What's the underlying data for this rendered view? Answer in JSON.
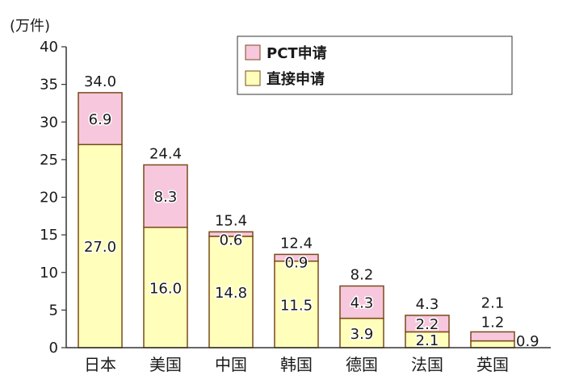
{
  "chart_data": {
    "type": "bar",
    "stacked": true,
    "unit_label": "(万件)",
    "categories": [
      "日本",
      "美国",
      "中国",
      "韩国",
      "德国",
      "法国",
      "英国"
    ],
    "totals": [
      "34.0",
      "24.4",
      "15.4",
      "12.4",
      "8.2",
      "4.3",
      "2.1"
    ],
    "series": [
      {
        "name": "直接申请",
        "values": [
          27.0,
          16.0,
          14.8,
          11.5,
          3.9,
          2.1,
          0.9
        ],
        "labels": [
          "27.0",
          "16.0",
          "14.8",
          "11.5",
          "3.9",
          "2.1",
          "0.9"
        ],
        "color": "#FFFFBB"
      },
      {
        "name": "PCT申请",
        "values": [
          6.9,
          8.3,
          0.6,
          0.9,
          4.3,
          2.2,
          1.2
        ],
        "labels": [
          "6.9",
          "8.3",
          "0.6",
          "0.9",
          "4.3",
          "2.2",
          "1.2"
        ],
        "color": "#F7C7DD"
      }
    ],
    "ylim": [
      0,
      40
    ],
    "yticks": [
      "0",
      "5",
      "10",
      "15",
      "20",
      "25",
      "30",
      "35",
      "40"
    ],
    "legend": {
      "placement": "top-right",
      "entries": [
        "PCT申请",
        "直接申请"
      ]
    },
    "grid": false
  },
  "colors": {
    "bar_stroke": "#7A4A1A",
    "axis": "#333333"
  }
}
